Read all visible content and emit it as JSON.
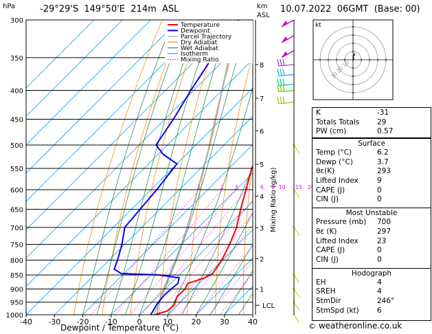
{
  "header": {
    "location": "-29°29'S  149°50'E  214m  ASL",
    "datetime": "10.07.2022  06GMT  (Base: 00)",
    "pressure_unit": "hPa",
    "height_unit_km": "km",
    "height_unit_asl": "ASL"
  },
  "chart_data": {
    "type": "skew-t",
    "xlabel": "Dewpoint / Temperature (°C)",
    "ylabel_right": "Mixing Ratio (g/kg)",
    "x_ticks": [
      -40,
      -30,
      -20,
      -10,
      0,
      10,
      20,
      30,
      40
    ],
    "y_ticks": [
      300,
      350,
      400,
      450,
      500,
      550,
      600,
      650,
      700,
      750,
      800,
      850,
      900,
      950,
      1000
    ],
    "xlim": [
      -40,
      40
    ],
    "ylim": [
      1000,
      300
    ],
    "legend": [
      {
        "name": "Temperature",
        "color": "#ff0000"
      },
      {
        "name": "Dewpoint",
        "color": "#0000ff"
      },
      {
        "name": "Parcel Trajectory",
        "color": "#aaaaaa"
      },
      {
        "name": "Dry Adiabat",
        "color": "#ff8c00"
      },
      {
        "name": "Wet Adiabat",
        "color": "#2e8b57"
      },
      {
        "name": "Isotherm",
        "color": "#00aaff"
      },
      {
        "name": "Mixing Ratio",
        "color": "#ff00ff"
      }
    ],
    "mixing_ratio_labels": [
      "1",
      "2",
      "3",
      "4",
      "6",
      "8",
      "10",
      "15",
      "20",
      "25"
    ],
    "km_labels": [
      {
        "km": "8",
        "p": 360
      },
      {
        "km": "7",
        "p": 413
      },
      {
        "km": "6",
        "p": 472
      },
      {
        "km": "5",
        "p": 541
      },
      {
        "km": "4",
        "p": 616
      },
      {
        "km": "3",
        "p": 701
      },
      {
        "km": "2",
        "p": 795
      },
      {
        "km": "1",
        "p": 900
      }
    ],
    "lcl_label": "LCL",
    "lcl_p": 962,
    "temperature": [
      {
        "p": 1000,
        "t": 5.4
      },
      {
        "p": 985,
        "t": 8.5
      },
      {
        "p": 960,
        "t": 8.8
      },
      {
        "p": 930,
        "t": 7.0
      },
      {
        "p": 900,
        "t": 7.0
      },
      {
        "p": 880,
        "t": 6.0
      },
      {
        "p": 860,
        "t": 10.0
      },
      {
        "p": 845,
        "t": 11.3
      },
      {
        "p": 800,
        "t": 9.8
      },
      {
        "p": 750,
        "t": 7.0
      },
      {
        "p": 700,
        "t": 3.5
      },
      {
        "p": 650,
        "t": -1.5
      },
      {
        "p": 600,
        "t": -6.5
      },
      {
        "p": 550,
        "t": -12.0
      },
      {
        "p": 500,
        "t": -16.5
      },
      {
        "p": 450,
        "t": -22.5
      },
      {
        "p": 400,
        "t": -29.0
      },
      {
        "p": 350,
        "t": -33.0
      },
      {
        "p": 300,
        "t": -39.0
      }
    ],
    "dewpoint": [
      {
        "p": 1000,
        "t": 4.0
      },
      {
        "p": 960,
        "t": 2.5
      },
      {
        "p": 920,
        "t": 1.8
      },
      {
        "p": 880,
        "t": 2.5
      },
      {
        "p": 860,
        "t": 1.0
      },
      {
        "p": 850,
        "t": -7.0
      },
      {
        "p": 845,
        "t": -21.0
      },
      {
        "p": 830,
        "t": -25.0
      },
      {
        "p": 800,
        "t": -27.0
      },
      {
        "p": 750,
        "t": -31.0
      },
      {
        "p": 700,
        "t": -36.0
      },
      {
        "p": 650,
        "t": -37.0
      },
      {
        "p": 600,
        "t": -38.0
      },
      {
        "p": 540,
        "t": -40.0
      },
      {
        "p": 520,
        "t": -48.0
      },
      {
        "p": 500,
        "t": -54.0
      },
      {
        "p": 450,
        "t": -57.0
      },
      {
        "p": 400,
        "t": -61.0
      },
      {
        "p": 350,
        "t": -65.0
      },
      {
        "p": 300,
        "t": -69.0
      }
    ],
    "parcel": [
      {
        "p": 1000,
        "t": 6.2
      },
      {
        "p": 962,
        "t": 3.2
      },
      {
        "p": 900,
        "t": -0.5
      },
      {
        "p": 850,
        "t": -3.5
      },
      {
        "p": 800,
        "t": -6.5
      },
      {
        "p": 750,
        "t": -10.0
      },
      {
        "p": 700,
        "t": -14.0
      },
      {
        "p": 650,
        "t": -18.5
      },
      {
        "p": 600,
        "t": -23.5
      },
      {
        "p": 550,
        "t": -29.0
      },
      {
        "p": 500,
        "t": -35.0
      },
      {
        "p": 450,
        "t": -42.0
      },
      {
        "p": 400,
        "t": -50.0
      },
      {
        "p": 350,
        "t": -59.0
      },
      {
        "p": 300,
        "t": -69.0
      }
    ]
  },
  "indices": {
    "rows": [
      {
        "label": "K",
        "value": "-31"
      },
      {
        "label": "Totals Totals",
        "value": "29"
      },
      {
        "label": "PW (cm)",
        "value": "0.57"
      }
    ]
  },
  "surface": {
    "title": "Surface",
    "rows": [
      {
        "label": "Temp (°C)",
        "value": "6.2"
      },
      {
        "label": "Dewp (°C)",
        "value": "3.7"
      },
      {
        "label": "θε(K)",
        "value": "293"
      },
      {
        "label": "Lifted Index",
        "value": "9"
      },
      {
        "label": "CAPE (J)",
        "value": "0"
      },
      {
        "label": "CIN (J)",
        "value": "0"
      }
    ]
  },
  "most_unstable": {
    "title": "Most Unstable",
    "rows": [
      {
        "label": "Pressure (mb)",
        "value": "700"
      },
      {
        "label": "θε (K)",
        "value": "297"
      },
      {
        "label": "Lifted Index",
        "value": "23"
      },
      {
        "label": "CAPE (J)",
        "value": "0"
      },
      {
        "label": "CIN (J)",
        "value": "0"
      }
    ]
  },
  "hodograph_table": {
    "title": "Hodograph",
    "rows": [
      {
        "label": "EH",
        "value": "4"
      },
      {
        "label": "SREH",
        "value": "4"
      },
      {
        "label": "StmDir",
        "value": "246°"
      },
      {
        "label": "StmSpd (kt)",
        "value": "6"
      }
    ]
  },
  "hodograph": {
    "unit_label": "kt",
    "ring_labels": [
      "10",
      "20",
      "30"
    ],
    "path_kt": [
      [
        0,
        -1
      ],
      [
        1,
        1
      ],
      [
        0,
        3
      ],
      [
        1,
        5
      ],
      [
        2,
        8
      ]
    ]
  },
  "credit": {
    "copyright": "©",
    "site": "weatheronline.co.uk"
  },
  "colors": {
    "temperature": "#ff0000",
    "dewpoint": "#0000ff",
    "parcel": "#aaaaaa",
    "dry_adiabat": "#ff8c00",
    "wet_adiabat": "#2e8b57",
    "isotherm": "#00aaff",
    "mixing_ratio": "#ff00ff",
    "wind_upper": "#cc00cc",
    "wind_mid": "#00bcd4",
    "wind_low": "#66cc00",
    "wind_lower": "#dddd00"
  },
  "wind_barbs": [
    {
      "p": 300,
      "color": "#cc00cc",
      "type": "pennant"
    },
    {
      "p": 320,
      "color": "#cc00cc",
      "type": "pennant"
    },
    {
      "p": 340,
      "color": "#cc00cc",
      "type": "pennant"
    },
    {
      "p": 360,
      "color": "#9933cc",
      "type": "lines"
    },
    {
      "p": 375,
      "color": "#00bcd4",
      "type": "lines"
    },
    {
      "p": 390,
      "color": "#00cc88",
      "type": "lines"
    },
    {
      "p": 400,
      "color": "#66cc00",
      "type": "lines"
    },
    {
      "p": 420,
      "color": "#99cc00",
      "type": "lines"
    },
    {
      "p": 500,
      "color": "#dddd00",
      "type": "single"
    },
    {
      "p": 600,
      "color": "#dddd00",
      "type": "single"
    },
    {
      "p": 700,
      "color": "#dddd00",
      "type": "single"
    },
    {
      "p": 850,
      "color": "#dddd00",
      "type": "single"
    },
    {
      "p": 900,
      "color": "#dddd00",
      "type": "single"
    },
    {
      "p": 950,
      "color": "#dddd00",
      "type": "single"
    },
    {
      "p": 1000,
      "color": "#dddd00",
      "type": "single"
    }
  ]
}
